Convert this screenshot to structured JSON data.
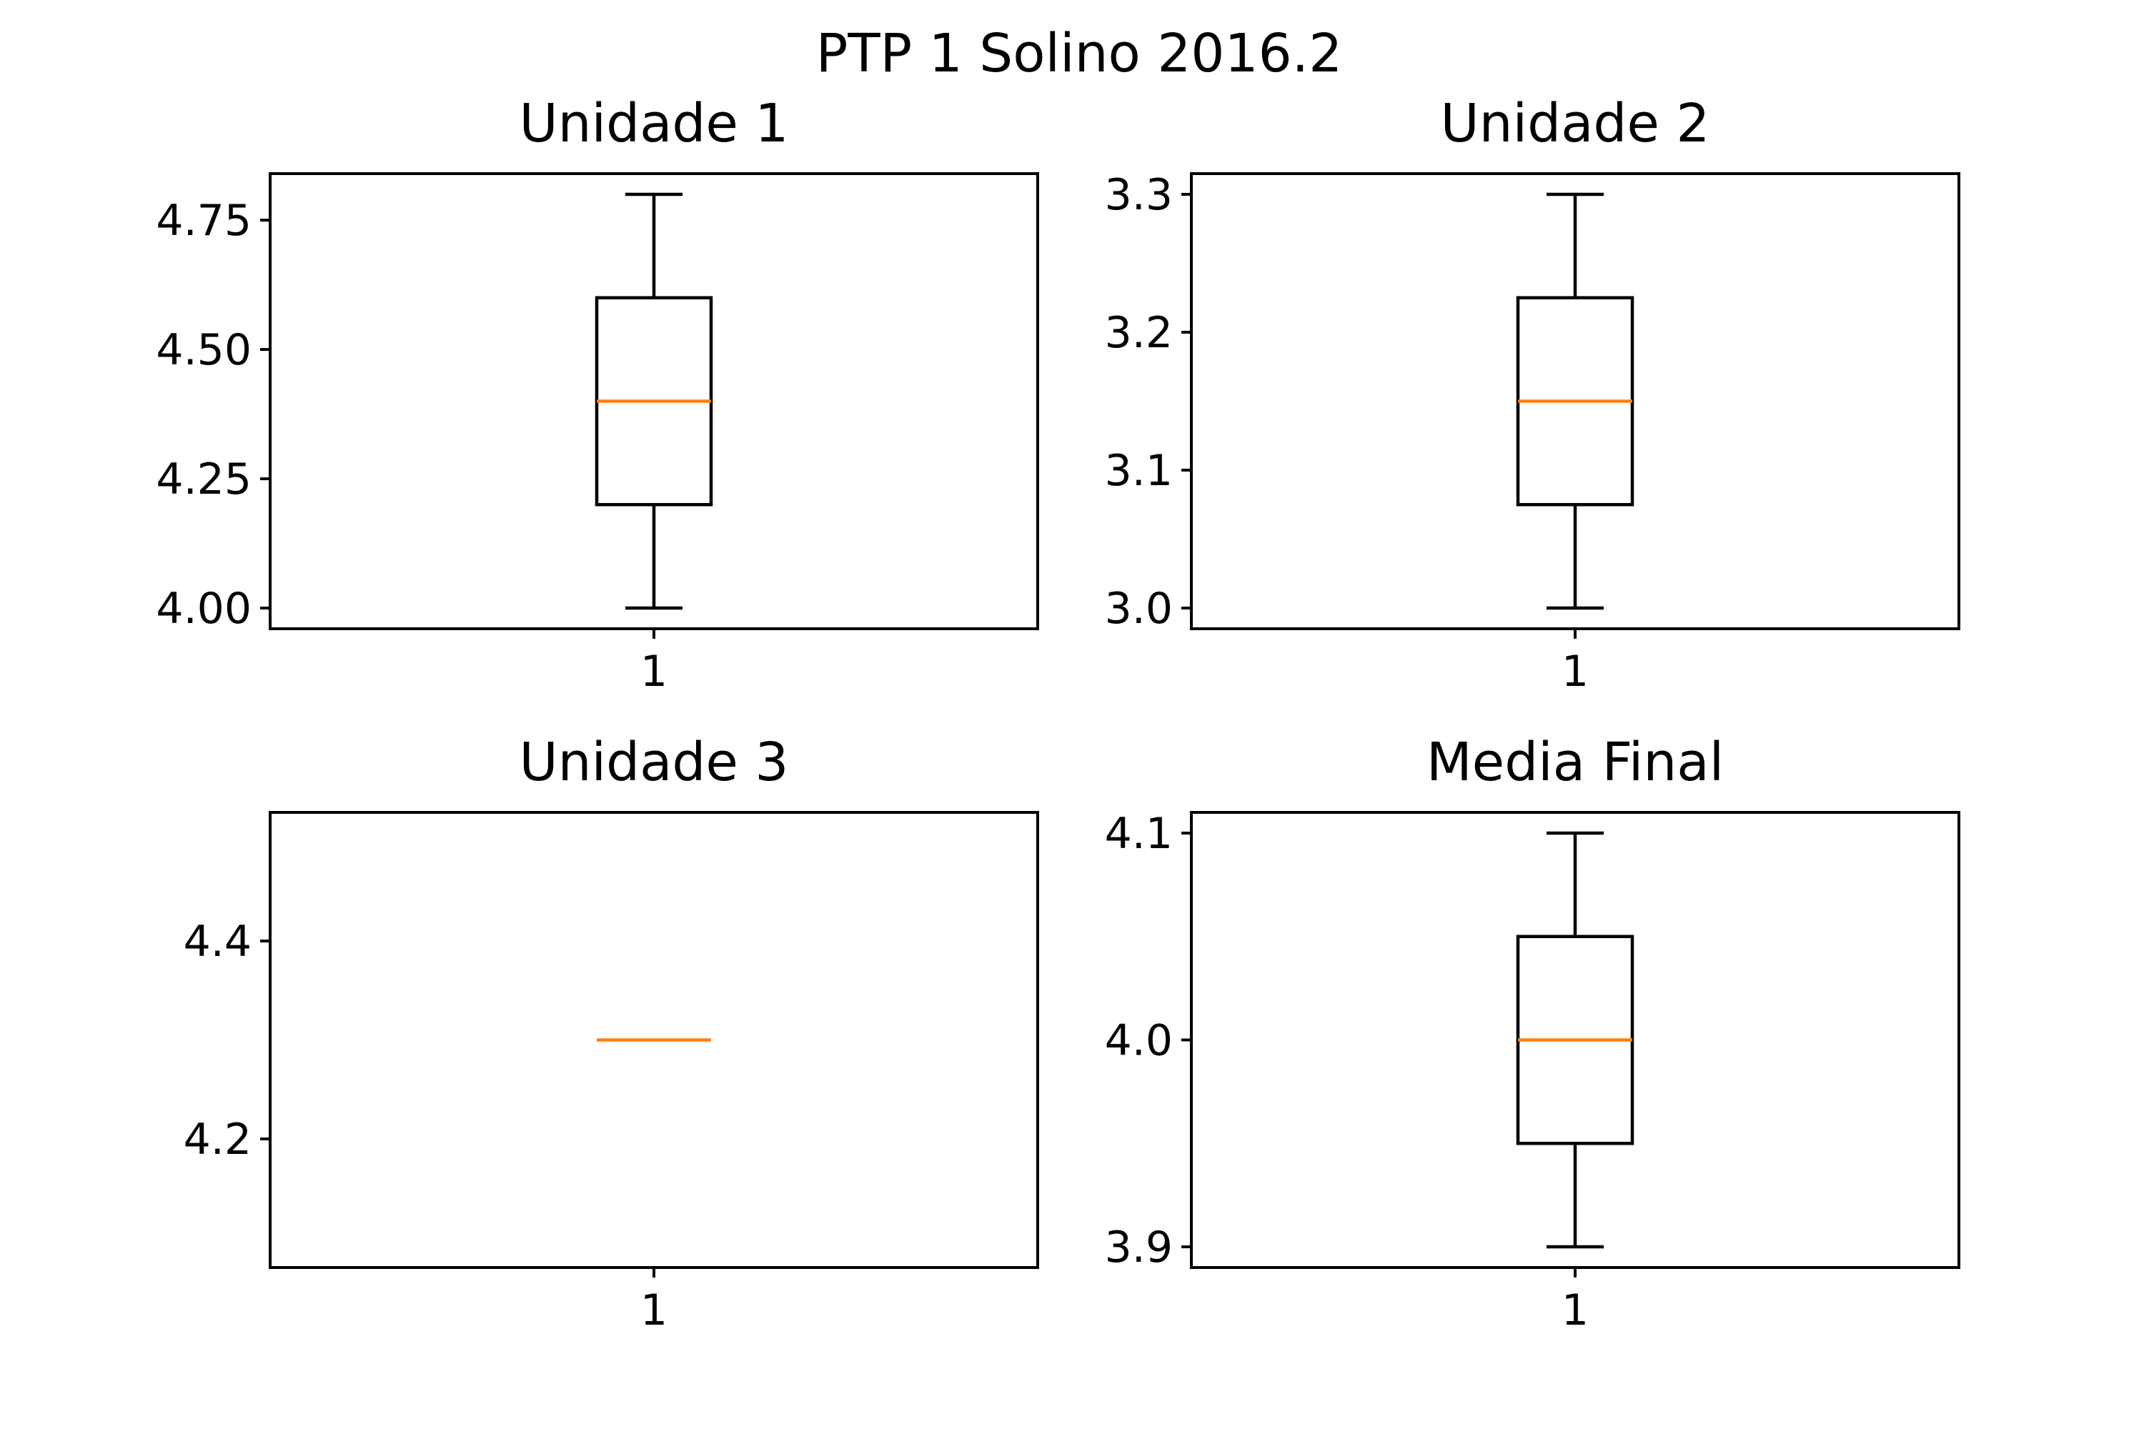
{
  "figure": {
    "title": "PTP 1 Solino 2016.2",
    "median_color": "#ff7f0e",
    "line_color": "#000000"
  },
  "chart_data": [
    {
      "type": "box",
      "title": "Unidade 1",
      "categories": [
        "1"
      ],
      "ylim": [
        3.96,
        4.84
      ],
      "yticks": [
        4.0,
        4.25,
        4.5,
        4.75
      ],
      "ytick_labels": [
        "4.00",
        "4.25",
        "4.50",
        "4.75"
      ],
      "box": {
        "whisker_low": 4.0,
        "q1": 4.2,
        "median": 4.4,
        "q3": 4.6,
        "whisker_high": 4.8
      }
    },
    {
      "type": "box",
      "title": "Unidade 2",
      "categories": [
        "1"
      ],
      "ylim": [
        2.985,
        3.315
      ],
      "yticks": [
        3.0,
        3.1,
        3.2,
        3.3
      ],
      "ytick_labels": [
        "3.0",
        "3.1",
        "3.2",
        "3.3"
      ],
      "box": {
        "whisker_low": 3.0,
        "q1": 3.075,
        "median": 3.15,
        "q3": 3.225,
        "whisker_high": 3.3
      }
    },
    {
      "type": "box",
      "title": "Unidade 3",
      "categories": [
        "1"
      ],
      "ylim": [
        4.07,
        4.53
      ],
      "yticks": [
        4.2,
        4.4
      ],
      "ytick_labels": [
        "4.2",
        "4.4"
      ],
      "box": {
        "whisker_low": 4.3,
        "q1": 4.3,
        "median": 4.3,
        "q3": 4.3,
        "whisker_high": 4.3
      }
    },
    {
      "type": "box",
      "title": "Media Final",
      "categories": [
        "1"
      ],
      "ylim": [
        3.89,
        4.11
      ],
      "yticks": [
        3.9,
        4.0,
        4.1
      ],
      "ytick_labels": [
        "3.9",
        "4.0",
        "4.1"
      ],
      "box": {
        "whisker_low": 3.9,
        "q1": 3.95,
        "median": 4.0,
        "q3": 4.05,
        "whisker_high": 4.1
      }
    }
  ]
}
